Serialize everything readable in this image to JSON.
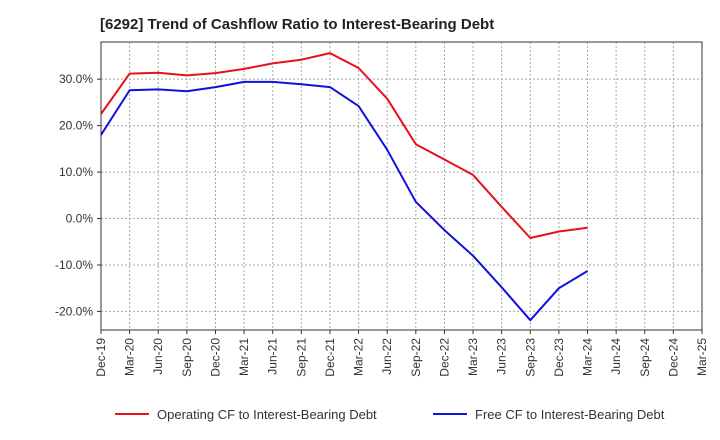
{
  "chart_data": {
    "type": "line",
    "title": "[6292]  Trend of Cashflow Ratio to Interest-Bearing Debt",
    "xlabel": "",
    "ylabel": "",
    "categories": [
      "Dec-19",
      "Mar-20",
      "Jun-20",
      "Sep-20",
      "Dec-20",
      "Mar-21",
      "Jun-21",
      "Sep-21",
      "Dec-21",
      "Mar-22",
      "Jun-22",
      "Sep-22",
      "Dec-22",
      "Mar-23",
      "Jun-23",
      "Sep-23",
      "Dec-23",
      "Mar-24",
      "Jun-24",
      "Sep-24",
      "Dec-24",
      "Mar-25"
    ],
    "ylim": [
      -24,
      38
    ],
    "yticks": [
      30,
      20,
      10,
      0,
      -10,
      -20
    ],
    "ytick_labels": [
      "30.0%",
      "20.0%",
      "10.0%",
      "0.0%",
      "-10.0%",
      "-20.0%"
    ],
    "grid": true,
    "legend_position": "bottom",
    "series": [
      {
        "name": "Operating CF to Interest-Bearing Debt",
        "color": "#e8101a",
        "values": [
          22.5,
          31.2,
          31.4,
          30.8,
          31.3,
          32.2,
          33.4,
          34.2,
          35.6,
          32.4,
          25.8,
          16.0,
          12.7,
          9.4,
          2.5,
          -4.2,
          -2.8,
          -2.0,
          null,
          null,
          null,
          null
        ]
      },
      {
        "name": "Free CF to Interest-Bearing Debt",
        "color": "#1010e0",
        "values": [
          18.0,
          27.6,
          27.8,
          27.4,
          28.3,
          29.4,
          29.4,
          28.9,
          28.3,
          24.2,
          14.8,
          3.6,
          -2.5,
          -8.0,
          -14.8,
          -21.9,
          -15.0,
          -11.3,
          null,
          null,
          null,
          null
        ]
      }
    ]
  }
}
